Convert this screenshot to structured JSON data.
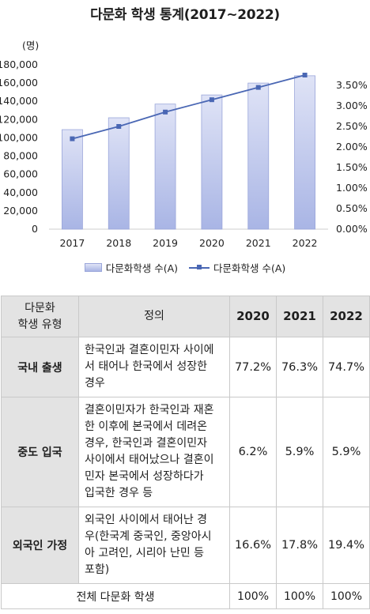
{
  "title": "다문화 학생 통계(2017~2022)",
  "chart_data": {
    "type": "bar",
    "categories": [
      "2017",
      "2018",
      "2019",
      "2020",
      "2021",
      "2022"
    ],
    "series": [
      {
        "name": "다문화학생 수(A)",
        "type": "bar",
        "axis": "left",
        "values": [
          109000,
          122000,
          137000,
          147000,
          160000,
          168000
        ]
      },
      {
        "name": "다문화학생 수(A)",
        "type": "line",
        "axis": "right",
        "values": [
          2.2,
          2.5,
          2.85,
          3.15,
          3.45,
          3.75
        ]
      }
    ],
    "ylabel": "(명)",
    "ylim": [
      0,
      180000
    ],
    "y2lim": [
      0,
      3.5
    ],
    "yticks": [
      "0",
      "20,000",
      "40,000",
      "60,000",
      "80,000",
      "100,000",
      "120,000",
      "140,000",
      "160,000",
      "180,000"
    ],
    "y2ticks": [
      "0.00%",
      "0.50%",
      "1.00%",
      "1.50%",
      "2.00%",
      "2.50%",
      "3.00%",
      "3.50%"
    ],
    "grid": false,
    "legend_position": "bottom",
    "colors": {
      "bar_top": "#dfe3f6",
      "bar_bottom": "#a9b5e5",
      "bar_border": "#9aa6da",
      "line": "#4a67b4"
    }
  },
  "legend": [
    "다문화학생 수(A)",
    "다문화학생 수(A)"
  ],
  "table": {
    "header": {
      "type_line1": "다문화",
      "type_line2": "학생 유형",
      "definition": "정의",
      "years": [
        "2020",
        "2021",
        "2022"
      ]
    },
    "rows": [
      {
        "type": "국내 출생",
        "lines": [
          "한국인과 결혼이민자 사이에",
          "서 태어나 한국에서 성장한",
          "경우"
        ],
        "values": [
          "77.2%",
          "76.3%",
          "74.7%"
        ]
      },
      {
        "type": "중도 입국",
        "lines": [
          "결혼이민자가 한국인과 재혼",
          "한 이후에 본국에서 데려온",
          "경우, 한국인과 결혼이민자",
          "사이에서 태어났으나 결혼이",
          "민자 본국에서 성장하다가",
          "입국한 경우 등"
        ],
        "values": [
          "6.2%",
          "5.9%",
          "5.9%"
        ]
      },
      {
        "type": "외국인 가정",
        "lines": [
          "외국인 사이에서 태어난 경",
          "우(한국계 중국인, 중앙아시",
          "아 고려인, 시리아 난민 등",
          "포함)"
        ],
        "values": [
          "16.6%",
          "17.8%",
          "19.4%"
        ]
      }
    ],
    "total": {
      "label": "전체 다문화 학생",
      "values": [
        "100%",
        "100%",
        "100%"
      ]
    }
  }
}
